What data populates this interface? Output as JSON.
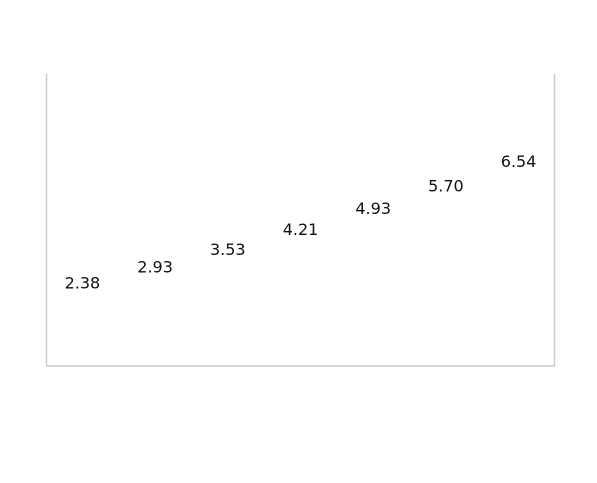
{
  "chart_data": {
    "type": "line",
    "categories": [
      "",
      "",
      "",
      "",
      "",
      "",
      ""
    ],
    "series": [
      {
        "values": [
          2.38,
          2.93,
          3.53,
          4.21,
          4.93,
          5.7,
          6.54
        ],
        "labels": [
          "2.38",
          "2.93",
          "3.53",
          "4.21",
          "4.93",
          "5.70",
          "6.54"
        ],
        "color": "#ffffff"
      }
    ],
    "title": "",
    "xlabel": "",
    "ylabel": "",
    "ylim": [
      0,
      10
    ],
    "grid": false,
    "legend": "none",
    "axis_color": "#cccccc",
    "label_color": "#111111"
  }
}
